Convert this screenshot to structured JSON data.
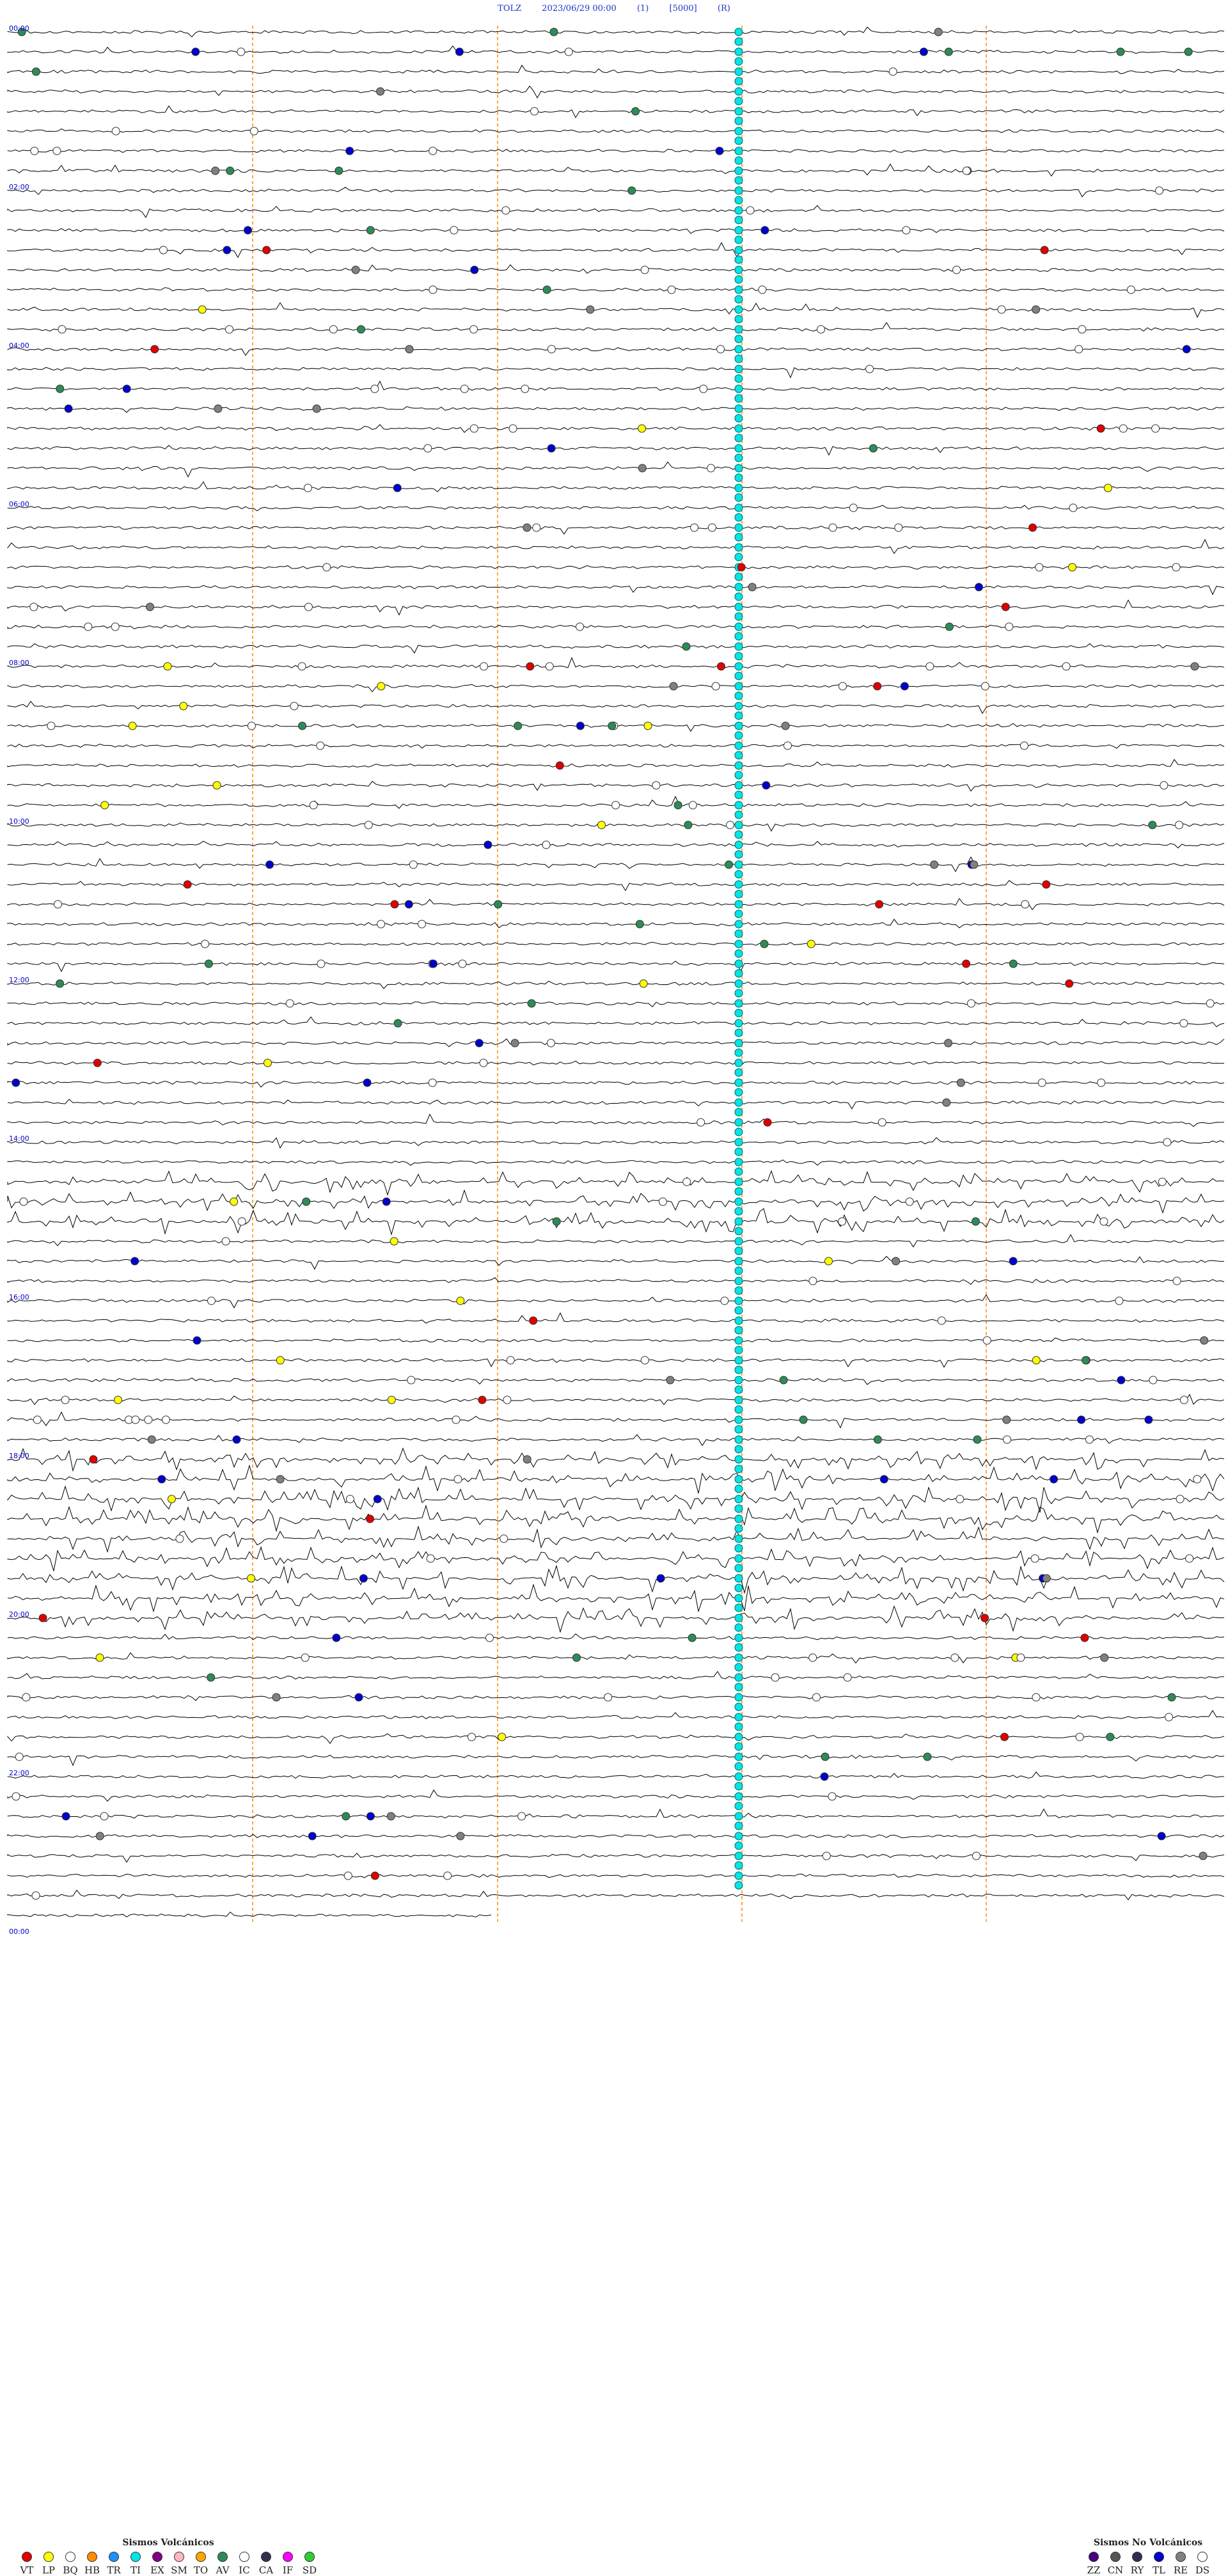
{
  "header": {
    "station": "TOLZ",
    "datetime": "2023/06/29 00:00",
    "flag1": "(1)",
    "amplitude": "[5000]",
    "flag2": "(R)"
  },
  "hour_labels": [
    "00:00",
    "02:00",
    "04:00",
    "06:00",
    "08:00",
    "10:00",
    "12:00",
    "14:00",
    "16:00",
    "18:00",
    "20:00",
    "22:00",
    "00:00"
  ],
  "legend_volcanic": {
    "title": "Sismos Volcánicos",
    "items": [
      {
        "code": "VT",
        "color": "#e00000"
      },
      {
        "code": "LP",
        "color": "#ffff00"
      },
      {
        "code": "BQ",
        "color": "#ffffff"
      },
      {
        "code": "HB",
        "color": "#ff8c00"
      },
      {
        "code": "TR",
        "color": "#1e90ff"
      },
      {
        "code": "TI",
        "color": "#00e5e5"
      },
      {
        "code": "EX",
        "color": "#800080"
      },
      {
        "code": "SM",
        "color": "#ffb6c1"
      },
      {
        "code": "TO",
        "color": "#ffa500"
      },
      {
        "code": "AV",
        "color": "#2e8b57"
      },
      {
        "code": "IC",
        "color": "#ffffff"
      },
      {
        "code": "CA",
        "color": "#2f2f4f"
      },
      {
        "code": "IF",
        "color": "#ff00ff"
      },
      {
        "code": "SD",
        "color": "#32cd32"
      }
    ]
  },
  "legend_nonvolcanic": {
    "title": "Sismos No Volcánicos",
    "items": [
      {
        "code": "ZZ",
        "color": "#4b0082"
      },
      {
        "code": "CN",
        "color": "#555555"
      },
      {
        "code": "RY",
        "color": "#2f2f4f"
      },
      {
        "code": "TL",
        "color": "#0000cd"
      },
      {
        "code": "RE",
        "color": "#808080"
      },
      {
        "code": "DS",
        "color": "#ffffff"
      }
    ]
  },
  "colors": {
    "trace": "#000000",
    "marker_guide": "#ff8c00",
    "hour_label": "#0000cc",
    "ti_column": "#00e5e5"
  }
}
